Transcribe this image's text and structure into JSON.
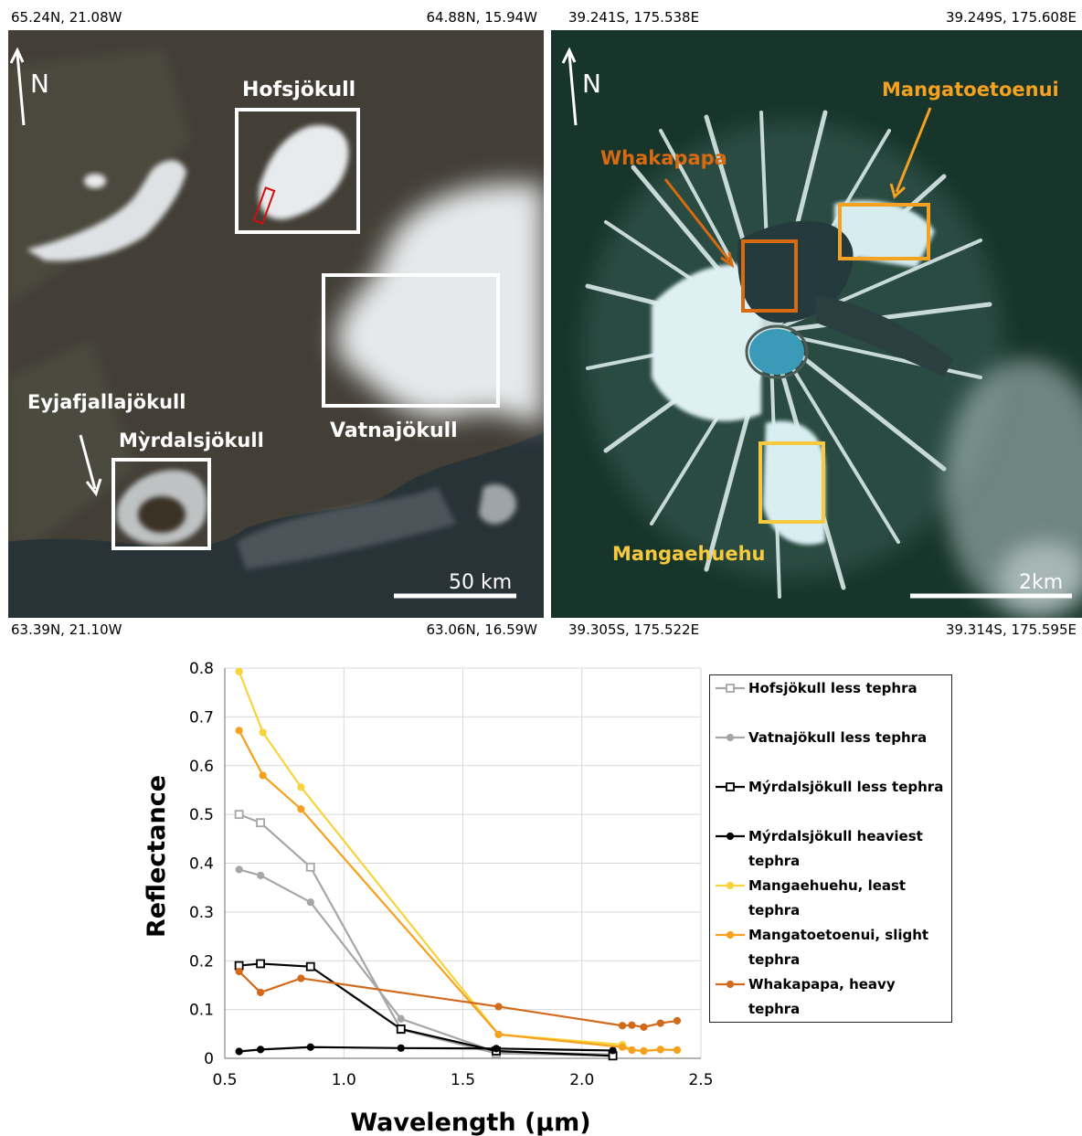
{
  "iceland_map": {
    "corner_top_left": "65.24N,  21.08W",
    "corner_top_right": "64.88N,  15.94W",
    "corner_bottom_left": "63.39N,  21.10W",
    "corner_bottom_right": "63.06N,  16.59W",
    "north_label": "N",
    "scale_label": "50 km",
    "labels": {
      "hofsjokull": "Hofsjökull",
      "vatnajokull": "Vatnajökull",
      "eyjafjallajokull": "Eyjafjallajökull",
      "myrdalsjokull": "Mỳrdalsjökull"
    }
  },
  "ruapehu_map": {
    "corner_top_left": "39.241S,  175.538E",
    "corner_top_right": "39.249S,  175.608E",
    "corner_bottom_left": "39.305S,  175.522E",
    "corner_bottom_right": "39.314S,  175.595E",
    "north_label": "N",
    "scale_label": "2km",
    "labels": {
      "whakapapa": "Whakapapa",
      "mangatoetoenui": "Mangatoetoenui",
      "mangaehuehu": "Mangaehuehu"
    },
    "colors": {
      "whakapapa": "#d86a12",
      "mangatoetoenui": "#f5a122",
      "mangaehuehu": "#f7c93e"
    }
  },
  "chart_data": {
    "type": "line",
    "xlabel": "Wavelength (µm)",
    "ylabel": "Reflectance",
    "xlim": [
      0.5,
      2.5
    ],
    "ylim": [
      0,
      0.8
    ],
    "x_ticks": [
      "0.5",
      "1.0",
      "1.5",
      "2.0",
      "2.5"
    ],
    "y_ticks": [
      "0",
      "0.1",
      "0.2",
      "0.3",
      "0.4",
      "0.5",
      "0.6",
      "0.7",
      "0.8"
    ],
    "grid": true,
    "legend_position": "right",
    "series": [
      {
        "name": "Hofsjökull less tephra",
        "color": "#a6a6a6",
        "marker": "square",
        "x": [
          0.56,
          0.65,
          0.86,
          1.24,
          1.64,
          2.13
        ],
        "y": [
          0.5,
          0.483,
          0.392,
          0.059,
          0.01,
          0.006
        ]
      },
      {
        "name": "Vatnajökull less tephra",
        "color": "#a6a6a6",
        "marker": "circle",
        "x": [
          0.56,
          0.65,
          0.86,
          1.24,
          1.64,
          2.13
        ],
        "y": [
          0.387,
          0.375,
          0.32,
          0.081,
          0.013,
          0.008
        ]
      },
      {
        "name": "Mýrdalsjökull less tephra",
        "color": "#000000",
        "marker": "square",
        "x": [
          0.56,
          0.65,
          0.86,
          1.24,
          1.64,
          2.13
        ],
        "y": [
          0.19,
          0.194,
          0.188,
          0.06,
          0.015,
          0.005
        ]
      },
      {
        "name": "Mýrdalsjökull heaviest tephra",
        "color": "#000000",
        "marker": "circle",
        "x": [
          0.56,
          0.65,
          0.86,
          1.24,
          1.64,
          2.13
        ],
        "y": [
          0.014,
          0.018,
          0.023,
          0.021,
          0.02,
          0.016
        ]
      },
      {
        "name": "Mangaehuehu, least tephra",
        "color": "#f7d43b",
        "marker": "circle",
        "x": [
          0.56,
          0.66,
          0.82,
          1.65,
          2.17,
          2.21,
          2.26,
          2.33,
          2.4
        ],
        "y": [
          0.793,
          0.668,
          0.556,
          0.049,
          0.028,
          0.017,
          0.015,
          0.018,
          0.017
        ]
      },
      {
        "name": "Mangatoetoenui, slight tephra",
        "color": "#f5a11d",
        "marker": "circle",
        "x": [
          0.56,
          0.66,
          0.82,
          1.65,
          2.17,
          2.21,
          2.26,
          2.33,
          2.4
        ],
        "y": [
          0.672,
          0.58,
          0.511,
          0.049,
          0.023,
          0.017,
          0.015,
          0.018,
          0.017
        ]
      },
      {
        "name": "Whakapapa, heavy tephra",
        "color": "#d2691b",
        "marker": "circle",
        "x": [
          0.56,
          0.65,
          0.82,
          1.65,
          2.17,
          2.21,
          2.26,
          2.33,
          2.4
        ],
        "y": [
          0.178,
          0.135,
          0.164,
          0.106,
          0.067,
          0.068,
          0.064,
          0.072,
          0.077
        ]
      }
    ]
  }
}
